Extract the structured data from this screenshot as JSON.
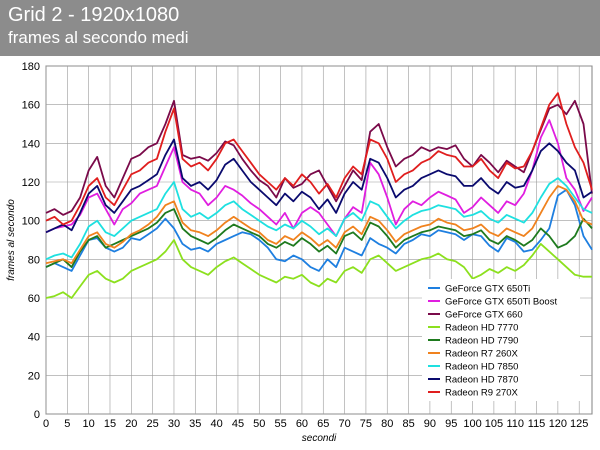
{
  "header": {
    "title": "Grid 2 - 1920x1080",
    "subtitle": "frames al secondo medi",
    "background": "#8c8c8c"
  },
  "chart_data": {
    "type": "line",
    "xlabel": "secondi",
    "ylabel": "frames al secondo",
    "xlim": [
      0,
      128
    ],
    "ylim": [
      0,
      180
    ],
    "xticks": [
      "0",
      "5",
      "10",
      "15",
      "20",
      "25",
      "30",
      "35",
      "40",
      "45",
      "50",
      "55",
      "60",
      "65",
      "70",
      "75",
      "80",
      "85",
      "90",
      "95",
      "100",
      "105",
      "110",
      "115",
      "120",
      "125"
    ],
    "yticks": [
      "0",
      "20",
      "40",
      "60",
      "80",
      "100",
      "120",
      "140",
      "160",
      "180"
    ],
    "grid": true,
    "legend_position": "bottom-right",
    "series": [
      {
        "name": "GeForce GTX 650Ti",
        "color": "#1e7fe0",
        "x": [
          0,
          2,
          4,
          6,
          8,
          10,
          12,
          14,
          16,
          18,
          20,
          22,
          24,
          26,
          28,
          30,
          32,
          34,
          36,
          38,
          40,
          42,
          44,
          46,
          48,
          50,
          52,
          54,
          56,
          58,
          60,
          62,
          64,
          66,
          68,
          70,
          72,
          74,
          76,
          78,
          80,
          82,
          84,
          86,
          88,
          90,
          92,
          94,
          96,
          98,
          100,
          102,
          104,
          106,
          108,
          110,
          112,
          114,
          116,
          118,
          120,
          122,
          124,
          126,
          128
        ],
        "y": [
          76,
          78,
          76,
          74,
          82,
          90,
          91,
          86,
          84,
          86,
          91,
          90,
          93,
          96,
          101,
          96,
          88,
          85,
          86,
          84,
          88,
          90,
          92,
          94,
          93,
          90,
          86,
          80,
          79,
          82,
          80,
          76,
          74,
          80,
          76,
          86,
          84,
          82,
          91,
          88,
          86,
          83,
          88,
          90,
          93,
          92,
          95,
          94,
          93,
          90,
          93,
          92,
          87,
          84,
          91,
          89,
          84,
          85,
          90,
          96,
          113,
          116,
          108,
          92,
          85
        ]
      },
      {
        "name": "GeForce GTX 650Ti Boost",
        "color": "#e01ee0",
        "x": [
          0,
          2,
          4,
          6,
          8,
          10,
          12,
          14,
          16,
          18,
          20,
          22,
          24,
          26,
          28,
          30,
          32,
          34,
          36,
          38,
          40,
          42,
          44,
          46,
          48,
          50,
          52,
          54,
          56,
          58,
          60,
          62,
          64,
          66,
          68,
          70,
          72,
          74,
          76,
          78,
          80,
          82,
          84,
          86,
          88,
          90,
          92,
          94,
          96,
          98,
          100,
          102,
          104,
          106,
          108,
          110,
          112,
          114,
          116,
          118,
          120,
          122,
          124,
          126,
          128
        ],
        "y": [
          94,
          96,
          97,
          98,
          103,
          112,
          114,
          106,
          98,
          106,
          109,
          114,
          116,
          118,
          128,
          138,
          120,
          116,
          114,
          108,
          112,
          118,
          116,
          113,
          109,
          106,
          102,
          98,
          104,
          96,
          104,
          107,
          104,
          98,
          92,
          101,
          107,
          104,
          130,
          124,
          112,
          98,
          106,
          110,
          108,
          112,
          115,
          113,
          111,
          104,
          107,
          112,
          108,
          104,
          110,
          108,
          114,
          126,
          143,
          152,
          140,
          122,
          116,
          105,
          112
        ]
      },
      {
        "name": "GeForce GTX 660",
        "color": "#7a0a4a",
        "x": [
          0,
          2,
          4,
          6,
          8,
          10,
          12,
          14,
          16,
          18,
          20,
          22,
          24,
          26,
          28,
          30,
          32,
          34,
          36,
          38,
          40,
          42,
          44,
          46,
          48,
          50,
          52,
          54,
          56,
          58,
          60,
          62,
          64,
          66,
          68,
          70,
          72,
          74,
          76,
          78,
          80,
          82,
          84,
          86,
          88,
          90,
          92,
          94,
          96,
          98,
          100,
          102,
          104,
          106,
          108,
          110,
          112,
          114,
          116,
          118,
          120,
          122,
          124,
          126,
          128
        ],
        "y": [
          104,
          106,
          103,
          105,
          112,
          126,
          133,
          118,
          112,
          122,
          132,
          134,
          138,
          140,
          150,
          162,
          134,
          132,
          133,
          131,
          135,
          141,
          139,
          132,
          126,
          121,
          118,
          112,
          122,
          117,
          119,
          124,
          126,
          118,
          110,
          118,
          126,
          121,
          146,
          150,
          138,
          128,
          132,
          134,
          138,
          136,
          138,
          137,
          139,
          132,
          128,
          134,
          130,
          125,
          131,
          128,
          125,
          136,
          147,
          158,
          160,
          155,
          162,
          150,
          114
        ]
      },
      {
        "name": "Radeon HD 7770",
        "color": "#8ce01e",
        "x": [
          0,
          2,
          4,
          6,
          8,
          10,
          12,
          14,
          16,
          18,
          20,
          22,
          24,
          26,
          28,
          30,
          32,
          34,
          36,
          38,
          40,
          42,
          44,
          46,
          48,
          50,
          52,
          54,
          56,
          58,
          60,
          62,
          64,
          66,
          68,
          70,
          72,
          74,
          76,
          78,
          80,
          82,
          84,
          86,
          88,
          90,
          92,
          94,
          96,
          98,
          100,
          102,
          104,
          106,
          108,
          110,
          112,
          114,
          116,
          118,
          120,
          122,
          124,
          126,
          128
        ],
        "y": [
          60,
          61,
          63,
          60,
          66,
          72,
          74,
          70,
          68,
          70,
          74,
          76,
          78,
          80,
          84,
          90,
          80,
          76,
          74,
          72,
          76,
          79,
          81,
          78,
          75,
          72,
          70,
          68,
          71,
          70,
          72,
          68,
          66,
          70,
          68,
          74,
          76,
          73,
          80,
          82,
          78,
          74,
          76,
          78,
          80,
          81,
          83,
          80,
          79,
          76,
          70,
          72,
          75,
          73,
          76,
          74,
          77,
          82,
          88,
          84,
          80,
          76,
          72,
          71,
          71
        ]
      },
      {
        "name": "Radeon HD 7790",
        "color": "#1e7a1e",
        "x": [
          0,
          2,
          4,
          6,
          8,
          10,
          12,
          14,
          16,
          18,
          20,
          22,
          24,
          26,
          28,
          30,
          32,
          34,
          36,
          38,
          40,
          42,
          44,
          46,
          48,
          50,
          52,
          54,
          56,
          58,
          60,
          62,
          64,
          66,
          68,
          70,
          72,
          74,
          76,
          78,
          80,
          82,
          84,
          86,
          88,
          90,
          92,
          94,
          96,
          98,
          100,
          102,
          104,
          106,
          108,
          110,
          112,
          114,
          116,
          118,
          120,
          122,
          124,
          126,
          128
        ],
        "y": [
          76,
          78,
          80,
          76,
          84,
          90,
          92,
          86,
          88,
          90,
          92,
          94,
          96,
          99,
          104,
          106,
          96,
          92,
          90,
          88,
          91,
          95,
          98,
          96,
          94,
          92,
          88,
          86,
          89,
          87,
          91,
          88,
          84,
          87,
          83,
          92,
          94,
          90,
          99,
          97,
          92,
          86,
          90,
          92,
          94,
          95,
          97,
          96,
          95,
          92,
          93,
          95,
          90,
          88,
          92,
          90,
          87,
          90,
          96,
          92,
          86,
          88,
          92,
          101,
          96
        ]
      },
      {
        "name": "Radeon R7 260X",
        "color": "#f0821e",
        "x": [
          0,
          2,
          4,
          6,
          8,
          10,
          12,
          14,
          16,
          18,
          20,
          22,
          24,
          26,
          28,
          30,
          32,
          34,
          36,
          38,
          40,
          42,
          44,
          46,
          48,
          50,
          52,
          54,
          56,
          58,
          60,
          62,
          64,
          66,
          68,
          70,
          72,
          74,
          76,
          78,
          80,
          82,
          84,
          86,
          88,
          90,
          92,
          94,
          96,
          98,
          100,
          102,
          104,
          106,
          108,
          110,
          112,
          114,
          116,
          118,
          120,
          122,
          124,
          126,
          128
        ],
        "y": [
          78,
          79,
          80,
          78,
          85,
          92,
          94,
          88,
          86,
          89,
          93,
          95,
          98,
          102,
          108,
          110,
          99,
          95,
          94,
          92,
          95,
          99,
          102,
          99,
          96,
          94,
          90,
          88,
          92,
          90,
          94,
          91,
          87,
          90,
          86,
          94,
          97,
          93,
          102,
          100,
          95,
          89,
          93,
          95,
          97,
          98,
          101,
          99,
          98,
          95,
          96,
          98,
          94,
          92,
          96,
          94,
          92,
          96,
          104,
          112,
          118,
          116,
          110,
          100,
          98
        ]
      },
      {
        "name": "Radeon HD 7850",
        "color": "#1ee0e0",
        "x": [
          0,
          2,
          4,
          6,
          8,
          10,
          12,
          14,
          16,
          18,
          20,
          22,
          24,
          26,
          28,
          30,
          32,
          34,
          36,
          38,
          40,
          42,
          44,
          46,
          48,
          50,
          52,
          54,
          56,
          58,
          60,
          62,
          64,
          66,
          68,
          70,
          72,
          74,
          76,
          78,
          80,
          82,
          84,
          86,
          88,
          90,
          92,
          94,
          96,
          98,
          100,
          102,
          104,
          106,
          108,
          110,
          112,
          114,
          116,
          118,
          120,
          122,
          124,
          126,
          128
        ],
        "y": [
          80,
          82,
          83,
          81,
          88,
          97,
          100,
          94,
          92,
          96,
          100,
          102,
          104,
          106,
          114,
          120,
          106,
          102,
          104,
          101,
          104,
          108,
          110,
          106,
          103,
          100,
          97,
          95,
          98,
          96,
          100,
          97,
          93,
          96,
          92,
          101,
          104,
          100,
          110,
          108,
          102,
          96,
          100,
          103,
          105,
          106,
          108,
          107,
          106,
          102,
          103,
          105,
          101,
          99,
          103,
          101,
          99,
          104,
          112,
          119,
          122,
          118,
          112,
          106,
          104
        ]
      },
      {
        "name": "Radeon HD 7870",
        "color": "#0a0a6e",
        "x": [
          0,
          2,
          4,
          6,
          8,
          10,
          12,
          14,
          16,
          18,
          20,
          22,
          24,
          26,
          28,
          30,
          32,
          34,
          36,
          38,
          40,
          42,
          44,
          46,
          48,
          50,
          52,
          54,
          56,
          58,
          60,
          62,
          64,
          66,
          68,
          70,
          72,
          74,
          76,
          78,
          80,
          82,
          84,
          86,
          88,
          90,
          92,
          94,
          96,
          98,
          100,
          102,
          104,
          106,
          108,
          110,
          112,
          114,
          116,
          118,
          120,
          122,
          124,
          126,
          128
        ],
        "y": [
          94,
          96,
          98,
          95,
          104,
          114,
          118,
          108,
          104,
          110,
          116,
          118,
          121,
          124,
          134,
          142,
          122,
          118,
          120,
          116,
          121,
          129,
          132,
          126,
          120,
          116,
          112,
          108,
          114,
          110,
          115,
          112,
          106,
          111,
          104,
          114,
          120,
          116,
          132,
          130,
          122,
          112,
          116,
          118,
          122,
          124,
          126,
          124,
          123,
          118,
          118,
          122,
          117,
          114,
          120,
          117,
          118,
          126,
          136,
          140,
          136,
          130,
          126,
          112,
          115
        ]
      },
      {
        "name": "Radeon R9 270X",
        "color": "#e01e1e",
        "x": [
          0,
          2,
          4,
          6,
          8,
          10,
          12,
          14,
          16,
          18,
          20,
          22,
          24,
          26,
          28,
          30,
          32,
          34,
          36,
          38,
          40,
          42,
          44,
          46,
          48,
          50,
          52,
          54,
          56,
          58,
          60,
          62,
          64,
          66,
          68,
          70,
          72,
          74,
          76,
          78,
          80,
          82,
          84,
          86,
          88,
          90,
          92,
          94,
          96,
          98,
          100,
          102,
          104,
          106,
          108,
          110,
          112,
          114,
          116,
          118,
          120,
          122,
          124,
          126,
          128
        ],
        "y": [
          100,
          102,
          98,
          100,
          108,
          118,
          122,
          112,
          108,
          116,
          124,
          126,
          130,
          132,
          146,
          158,
          132,
          128,
          130,
          126,
          132,
          140,
          142,
          136,
          130,
          124,
          120,
          116,
          122,
          118,
          124,
          120,
          114,
          119,
          112,
          122,
          128,
          124,
          142,
          140,
          132,
          120,
          124,
          126,
          130,
          132,
          136,
          134,
          133,
          128,
          128,
          132,
          126,
          122,
          130,
          127,
          128,
          136,
          148,
          160,
          166,
          150,
          138,
          130,
          116
        ]
      }
    ]
  }
}
